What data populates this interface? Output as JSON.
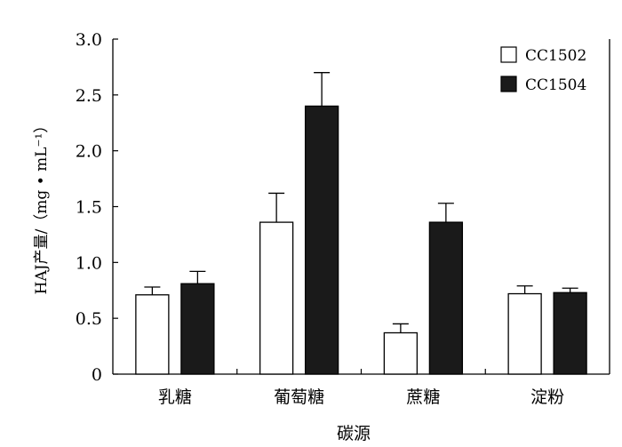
{
  "chart_data": {
    "type": "bar",
    "categories": [
      "乳糖",
      "葡萄糖",
      "蔗糖",
      "淀粉"
    ],
    "series": [
      {
        "name": "CC1502",
        "values": [
          0.71,
          1.36,
          0.37,
          0.72
        ],
        "errors": [
          0.07,
          0.26,
          0.08,
          0.07
        ],
        "color": "#ffffff"
      },
      {
        "name": "CC1504",
        "values": [
          0.81,
          2.4,
          1.36,
          0.73
        ],
        "errors": [
          0.11,
          0.3,
          0.17,
          0.04
        ],
        "color": "#1a1a1a"
      }
    ],
    "xlabel": "碳源",
    "ylabel": "HAJ产量/（mg • mL⁻¹）",
    "ylim": [
      0,
      3.0
    ],
    "yticks": [
      "0",
      "0.5",
      "1.0",
      "1.5",
      "2.0",
      "2.5",
      "3.0"
    ],
    "legend_position": "top-right",
    "grid": false
  }
}
